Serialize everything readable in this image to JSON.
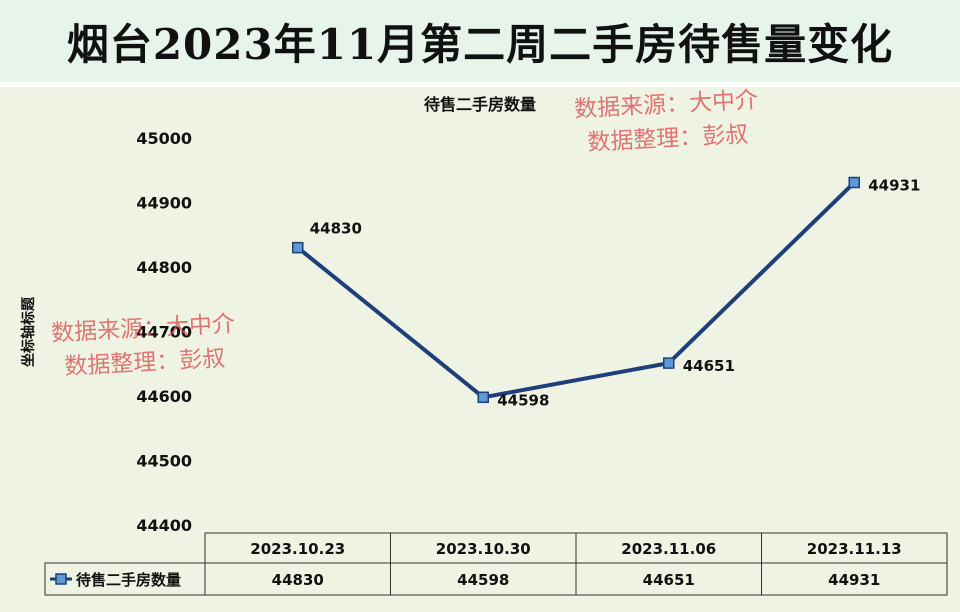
{
  "page_title": "烟台2023年11月第二周二手房待售量变化",
  "chart_data": {
    "type": "line",
    "title": "待售二手房数量",
    "ylabel": "坐标轴标题",
    "xlabel": "",
    "ylim": [
      44400,
      45000
    ],
    "yticks": [
      44400,
      44500,
      44600,
      44700,
      44800,
      44900,
      45000
    ],
    "categories": [
      "2023.10.23",
      "2023.10.30",
      "2023.11.06",
      "2023.11.13"
    ],
    "series": [
      {
        "name": "待售二手房数量",
        "values": [
          44830,
          44598,
          44651,
          44931
        ]
      }
    ],
    "line_color": "#1f3f7a",
    "marker_color": "#5b9ad5"
  },
  "watermarks": [
    {
      "line1": "数据来源：大中介",
      "line2": "数据整理：彭叔"
    },
    {
      "line1": "数据来源：大中介",
      "line2": "数据整理：彭叔"
    }
  ]
}
